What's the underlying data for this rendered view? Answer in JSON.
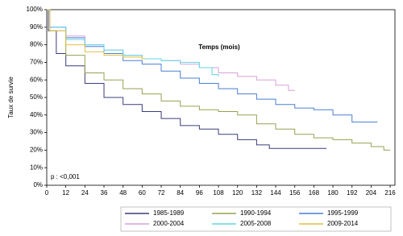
{
  "chart_data": {
    "type": "step-line",
    "x_label": "Temps (mois)",
    "y_label": "Taux de survie",
    "annotation": "p : <0,001",
    "xlim": [
      0,
      219
    ],
    "xticks": [
      0,
      12,
      24,
      36,
      48,
      60,
      72,
      84,
      96,
      108,
      120,
      132,
      144,
      156,
      168,
      180,
      192,
      204,
      216
    ],
    "ylim": [
      0,
      100
    ],
    "yticks": [
      {
        "value": 0,
        "label": "0%"
      },
      {
        "value": 10,
        "label": "10%"
      },
      {
        "value": 20,
        "label": "20%"
      },
      {
        "value": 30,
        "label": "30%"
      },
      {
        "value": 40,
        "label": "40%"
      },
      {
        "value": 50,
        "label": "50%"
      },
      {
        "value": 60,
        "label": "60%"
      },
      {
        "value": 70,
        "label": "70%"
      },
      {
        "value": 80,
        "label": "80%"
      },
      {
        "value": 90,
        "label": "90%"
      },
      {
        "value": 100,
        "label": "100%"
      }
    ],
    "series": [
      {
        "name": "1985-1989",
        "color": "#3c3c7c",
        "x": [
          0,
          1,
          6,
          12,
          24,
          36,
          48,
          60,
          72,
          84,
          96,
          108,
          120,
          132,
          140,
          176
        ],
        "values": [
          100,
          88,
          75,
          68,
          58,
          50,
          46,
          42,
          38,
          34,
          32,
          29,
          26,
          23,
          21,
          21
        ]
      },
      {
        "name": "1990-1994",
        "color": "#9aa052",
        "x": [
          0,
          2,
          12,
          24,
          36,
          48,
          60,
          72,
          84,
          96,
          108,
          120,
          132,
          144,
          156,
          168,
          180,
          192,
          204,
          212,
          216
        ],
        "values": [
          100,
          88,
          74,
          64,
          60,
          55,
          52,
          48,
          45,
          43,
          42,
          40,
          35,
          32,
          29,
          27,
          26,
          24,
          22,
          20,
          20
        ]
      },
      {
        "name": "1995-1999",
        "color": "#4a7fd4",
        "x": [
          0,
          2,
          12,
          24,
          36,
          48,
          60,
          72,
          84,
          96,
          108,
          120,
          132,
          144,
          156,
          168,
          180,
          192,
          208
        ],
        "values": [
          100,
          90,
          84,
          79,
          75,
          71,
          69,
          65,
          61,
          58,
          55,
          52,
          49,
          46,
          44,
          43,
          40,
          36,
          36
        ]
      },
      {
        "name": "2000-2004",
        "color": "#d8a0d8",
        "x": [
          0,
          2,
          12,
          24,
          36,
          48,
          60,
          72,
          84,
          96,
          108,
          120,
          132,
          144,
          152,
          156
        ],
        "values": [
          100,
          90,
          85,
          80,
          77,
          74,
          72,
          71,
          69,
          67,
          64,
          62,
          60,
          57,
          54,
          54
        ]
      },
      {
        "name": "2005-2008",
        "color": "#5cd6e6",
        "x": [
          0,
          2,
          12,
          24,
          36,
          48,
          60,
          72,
          84,
          96,
          104,
          108
        ],
        "values": [
          100,
          90,
          83,
          80,
          77,
          74,
          72,
          71,
          70,
          67,
          63,
          62
        ]
      },
      {
        "name": "2009-2014",
        "color": "#e0c040",
        "x": [
          0,
          2,
          12,
          24,
          36,
          48,
          60,
          62
        ],
        "values": [
          100,
          88,
          80,
          76,
          74,
          73,
          72,
          72
        ]
      }
    ]
  }
}
